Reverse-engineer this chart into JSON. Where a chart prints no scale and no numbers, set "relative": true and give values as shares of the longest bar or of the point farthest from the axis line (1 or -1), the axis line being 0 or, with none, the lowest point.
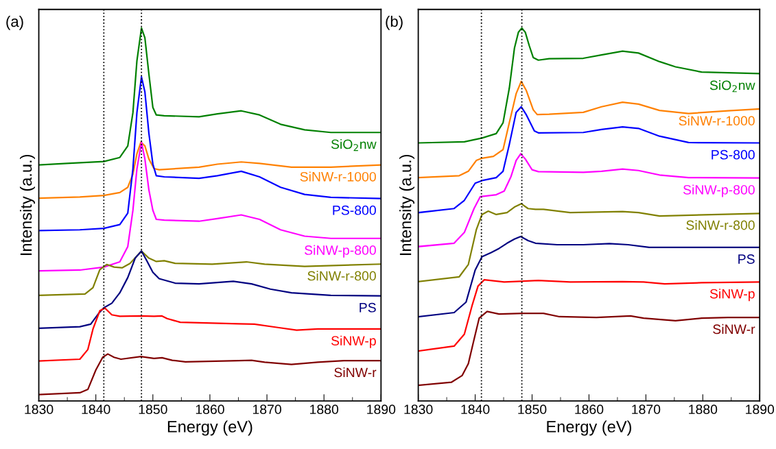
{
  "chart_data": [
    {
      "type": "line",
      "title": "(a)",
      "xlabel": "Energy (eV)",
      "ylabel": "Intensity (a.u.)",
      "relative": true,
      "xlim": [
        1830,
        1890
      ],
      "xticks": [
        1830,
        1840,
        1850,
        1860,
        1870,
        1880,
        1890
      ],
      "legend": false,
      "grid": false,
      "marker": "none",
      "line_style": "solid",
      "tick_labels": "x",
      "ref_lines": [
        {
          "axis": "x",
          "value": 1841.4,
          "line_style": "dotted",
          "color": "#000000"
        },
        {
          "axis": "x",
          "value": 1848.0,
          "line_style": "dotted",
          "color": "#000000"
        }
      ],
      "series": [
        {
          "name": "SiO$_{2}$nw",
          "color": "#008000",
          "x": [
            1830,
            1834.9,
            1841.4,
            1844.2,
            1845.6,
            1846.5,
            1847.2,
            1848.0,
            1848.6,
            1849.3,
            1850.0,
            1850.6,
            1852.0,
            1858.1,
            1861.3,
            1865.5,
            1868.7,
            1872.4,
            1876.6,
            1881.2,
            1890
          ],
          "values": [
            0.633,
            0.637,
            0.642,
            0.653,
            0.684,
            0.773,
            0.912,
            1.0,
            0.974,
            0.877,
            0.787,
            0.767,
            0.765,
            0.762,
            0.77,
            0.778,
            0.767,
            0.742,
            0.727,
            0.72,
            0.72
          ]
        },
        {
          "name": "SiNW-r-1000",
          "color": "#ff8000",
          "x": [
            1830,
            1837.2,
            1841.4,
            1844.2,
            1845.6,
            1846.5,
            1847.2,
            1847.9,
            1848.6,
            1849.3,
            1850.2,
            1851.1,
            1858.1,
            1861.3,
            1865.5,
            1868.7,
            1874.3,
            1881.2,
            1890
          ],
          "values": [
            0.544,
            0.547,
            0.551,
            0.559,
            0.573,
            0.608,
            0.663,
            0.694,
            0.684,
            0.649,
            0.623,
            0.62,
            0.627,
            0.635,
            0.641,
            0.637,
            0.627,
            0.627,
            0.633
          ]
        },
        {
          "name": "PS-800",
          "color": "#0000ff",
          "x": [
            1830,
            1837.2,
            1841.4,
            1844.2,
            1845.6,
            1846.5,
            1847.2,
            1848.0,
            1848.6,
            1849.3,
            1850.0,
            1850.6,
            1852.0,
            1858.1,
            1861.3,
            1865.5,
            1868.7,
            1872.4,
            1876.6,
            1881.2,
            1890
          ],
          "values": [
            0.457,
            0.459,
            0.463,
            0.473,
            0.504,
            0.622,
            0.773,
            0.869,
            0.829,
            0.718,
            0.635,
            0.604,
            0.601,
            0.597,
            0.604,
            0.616,
            0.601,
            0.573,
            0.554,
            0.546,
            0.543
          ]
        },
        {
          "name": "SiNW-p-800",
          "color": "#ff00ff",
          "x": [
            1830,
            1837.2,
            1841.4,
            1844.2,
            1845.6,
            1846.5,
            1847.2,
            1848.0,
            1848.6,
            1849.3,
            1850.0,
            1850.6,
            1852.0,
            1858.1,
            1861.3,
            1865.5,
            1868.7,
            1872.4,
            1876.6,
            1881.2,
            1890
          ],
          "values": [
            0.349,
            0.351,
            0.359,
            0.373,
            0.414,
            0.511,
            0.622,
            0.694,
            0.649,
            0.566,
            0.511,
            0.487,
            0.485,
            0.482,
            0.489,
            0.499,
            0.487,
            0.459,
            0.442,
            0.436,
            0.436
          ]
        },
        {
          "name": "SiNW-r-800",
          "color": "#808000",
          "x": [
            1830,
            1838.1,
            1839.5,
            1840.7,
            1841.9,
            1843.2,
            1844.6,
            1846.0,
            1848.0,
            1849.3,
            1850.6,
            1852.0,
            1853.9,
            1860.4,
            1866.4,
            1869.6,
            1876.6,
            1890
          ],
          "values": [
            0.283,
            0.287,
            0.304,
            0.352,
            0.366,
            0.359,
            0.357,
            0.369,
            0.402,
            0.383,
            0.374,
            0.376,
            0.369,
            0.367,
            0.373,
            0.367,
            0.361,
            0.367
          ]
        },
        {
          "name": "PS",
          "color": "#000080",
          "x": [
            1830,
            1837.2,
            1839.1,
            1840.5,
            1841.4,
            1842.8,
            1844.2,
            1845.6,
            1846.9,
            1848.0,
            1848.8,
            1850.0,
            1851.1,
            1853.9,
            1858.1,
            1864.1,
            1867.3,
            1870.6,
            1874.3,
            1881.2,
            1890
          ],
          "values": [
            0.195,
            0.199,
            0.206,
            0.235,
            0.25,
            0.262,
            0.29,
            0.331,
            0.383,
            0.402,
            0.38,
            0.345,
            0.328,
            0.316,
            0.314,
            0.321,
            0.314,
            0.3,
            0.29,
            0.283,
            0.282
          ]
        },
        {
          "name": "SiNW-p",
          "color": "#ff0000",
          "x": [
            1830,
            1837.2,
            1838.6,
            1839.5,
            1840.7,
            1841.6,
            1842.8,
            1844.2,
            1847.9,
            1850.2,
            1851.6,
            1852.5,
            1854.8,
            1865.0,
            1867.8,
            1871.9,
            1875.2,
            1878.9,
            1890
          ],
          "values": [
            0.107,
            0.112,
            0.138,
            0.193,
            0.242,
            0.249,
            0.231,
            0.227,
            0.228,
            0.227,
            0.228,
            0.221,
            0.211,
            0.207,
            0.206,
            0.197,
            0.19,
            0.193,
            0.193
          ]
        },
        {
          "name": "SiNW-r",
          "color": "#800000",
          "x": [
            1830,
            1837.2,
            1838.6,
            1840.0,
            1841.2,
            1842.1,
            1843.2,
            1844.4,
            1847.9,
            1850.2,
            1851.6,
            1853.4,
            1855.7,
            1865.0,
            1867.3,
            1869.6,
            1874.3,
            1878.9,
            1883.5,
            1890
          ],
          "values": [
            0.017,
            0.022,
            0.031,
            0.083,
            0.117,
            0.126,
            0.117,
            0.112,
            0.119,
            0.114,
            0.116,
            0.109,
            0.105,
            0.108,
            0.109,
            0.104,
            0.098,
            0.104,
            0.108,
            0.108
          ]
        }
      ]
    },
    {
      "type": "line",
      "title": "(b)",
      "xlabel": "Energy (eV)",
      "ylabel": "Intensity (a.u.)",
      "relative": true,
      "xlim": [
        1830,
        1890
      ],
      "xticks": [
        1830,
        1840,
        1850,
        1860,
        1870,
        1880,
        1890
      ],
      "legend": false,
      "grid": false,
      "marker": "none",
      "line_style": "solid",
      "tick_labels": "x",
      "ref_lines": [
        {
          "axis": "x",
          "value": 1841.1,
          "line_style": "dotted",
          "color": "#000000"
        },
        {
          "axis": "x",
          "value": 1848.2,
          "line_style": "dotted",
          "color": "#000000"
        }
      ],
      "series": [
        {
          "name": "SiO$_{2}$nw",
          "color": "#008000",
          "x": [
            1830,
            1838.1,
            1841.2,
            1843.7,
            1844.9,
            1846.0,
            1846.9,
            1847.6,
            1848.2,
            1848.8,
            1849.5,
            1850.2,
            1851.1,
            1853.0,
            1859.0,
            1862.2,
            1865.9,
            1868.7,
            1872.4,
            1875.2,
            1879.8,
            1890
          ],
          "values": [
            0.692,
            0.695,
            0.705,
            0.717,
            0.746,
            0.839,
            0.946,
            0.989,
            1.0,
            0.989,
            0.953,
            0.921,
            0.914,
            0.918,
            0.919,
            0.928,
            0.938,
            0.933,
            0.91,
            0.896,
            0.882,
            0.878
          ]
        },
        {
          "name": "SiNW-r-1000",
          "color": "#ff8000",
          "x": [
            1830,
            1837.2,
            1838.8,
            1840.2,
            1841.2,
            1843.2,
            1844.9,
            1846.0,
            1847.2,
            1848.1,
            1849.0,
            1850.2,
            1850.9,
            1853.0,
            1859.0,
            1862.2,
            1865.9,
            1868.7,
            1872.4,
            1877.5,
            1884.4,
            1890
          ],
          "values": [
            0.599,
            0.604,
            0.616,
            0.645,
            0.651,
            0.656,
            0.674,
            0.746,
            0.824,
            0.857,
            0.832,
            0.781,
            0.768,
            0.769,
            0.774,
            0.789,
            0.801,
            0.796,
            0.779,
            0.771,
            0.778,
            0.783
          ]
        },
        {
          "name": "PS-800",
          "color": "#0000ff",
          "x": [
            1830,
            1836.3,
            1838.1,
            1840.0,
            1841.2,
            1843.7,
            1844.9,
            1846.0,
            1847.2,
            1848.1,
            1849.0,
            1850.4,
            1851.1,
            1859.0,
            1862.2,
            1865.9,
            1868.7,
            1872.4,
            1877.5,
            1890
          ],
          "values": [
            0.505,
            0.516,
            0.538,
            0.584,
            0.591,
            0.599,
            0.616,
            0.688,
            0.774,
            0.789,
            0.767,
            0.724,
            0.719,
            0.72,
            0.728,
            0.735,
            0.731,
            0.71,
            0.693,
            0.692
          ]
        },
        {
          "name": "SiNW-p-800",
          "color": "#ff00ff",
          "x": [
            1830,
            1836.3,
            1838.1,
            1839.8,
            1840.9,
            1843.7,
            1845.1,
            1846.3,
            1847.2,
            1848.0,
            1848.8,
            1850.0,
            1851.1,
            1859.0,
            1862.2,
            1865.9,
            1868.7,
            1872.4,
            1877.5,
            1890
          ],
          "values": [
            0.414,
            0.423,
            0.452,
            0.516,
            0.548,
            0.553,
            0.563,
            0.602,
            0.645,
            0.663,
            0.649,
            0.62,
            0.615,
            0.613,
            0.616,
            0.622,
            0.618,
            0.606,
            0.599,
            0.598
          ]
        },
        {
          "name": "SiNW-r-800",
          "color": "#808000",
          "x": [
            1830,
            1837.2,
            1838.8,
            1840.2,
            1841.2,
            1842.3,
            1843.7,
            1845.6,
            1846.9,
            1848.1,
            1849.3,
            1850.6,
            1852.0,
            1856.7,
            1865.9,
            1868.7,
            1872.4,
            1890
          ],
          "values": [
            0.32,
            0.333,
            0.366,
            0.459,
            0.5,
            0.509,
            0.5,
            0.505,
            0.52,
            0.529,
            0.516,
            0.514,
            0.514,
            0.505,
            0.508,
            0.505,
            0.496,
            0.503
          ]
        },
        {
          "name": "PS",
          "color": "#000080",
          "x": [
            1830,
            1836.3,
            1838.4,
            1840.0,
            1841.2,
            1842.8,
            1844.2,
            1845.6,
            1846.9,
            1848.0,
            1849.3,
            1850.6,
            1854.4,
            1859.0,
            1863.6,
            1866.9,
            1870.6,
            1875.2,
            1890
          ],
          "values": [
            0.226,
            0.237,
            0.265,
            0.351,
            0.387,
            0.398,
            0.409,
            0.423,
            0.434,
            0.441,
            0.43,
            0.423,
            0.419,
            0.419,
            0.422,
            0.419,
            0.412,
            0.412,
            0.412
          ]
        },
        {
          "name": "SiNW-p",
          "color": "#ff0000",
          "x": [
            1830,
            1836.3,
            1838.1,
            1839.5,
            1840.5,
            1841.6,
            1845.1,
            1851.1,
            1856.7,
            1865.9,
            1869.6,
            1873.3,
            1879.8,
            1890
          ],
          "values": [
            0.134,
            0.147,
            0.179,
            0.258,
            0.308,
            0.325,
            0.319,
            0.323,
            0.319,
            0.32,
            0.319,
            0.314,
            0.317,
            0.319
          ]
        },
        {
          "name": "SiNW-r",
          "color": "#800000",
          "x": [
            1830,
            1835.8,
            1837.7,
            1838.8,
            1839.8,
            1840.7,
            1842.1,
            1844.2,
            1848.3,
            1852.0,
            1854.8,
            1861.3,
            1867.3,
            1869.6,
            1875.2,
            1879.8,
            1884.4,
            1890
          ],
          "values": [
            0.042,
            0.05,
            0.068,
            0.1,
            0.165,
            0.222,
            0.24,
            0.233,
            0.235,
            0.235,
            0.226,
            0.224,
            0.228,
            0.222,
            0.215,
            0.222,
            0.224,
            0.224
          ]
        }
      ]
    }
  ]
}
